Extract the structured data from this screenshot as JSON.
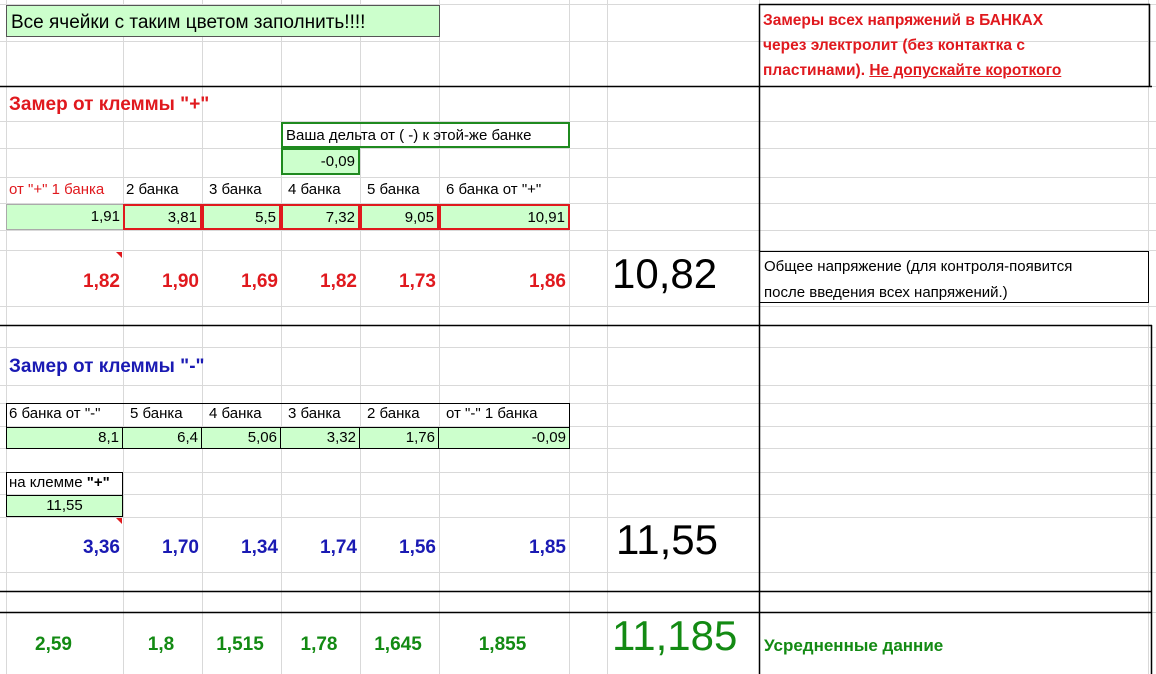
{
  "banner": "Все ячейки с таким цветом заполнить!!!!",
  "note": {
    "line1": "Замеры всех напряжений в БАНКАХ",
    "line2": "через электролит (без контактка с",
    "line3_a": "пластинами).",
    "line3_b": "Не допускайте короткого"
  },
  "plus": {
    "title": "Замер от клеммы \"+\"",
    "delta_label": "Ваша дельта от ( -) к этой-же банке",
    "delta_value": "-0,09",
    "headers": [
      "от \"+\" 1 банка",
      "2 банка",
      "3 банка",
      "4 банка",
      "5 банка",
      "6 банка от \"+\""
    ],
    "inputs": [
      "1,91",
      "3,81",
      "5,5",
      "7,32",
      "9,05",
      "10,91"
    ],
    "banks": [
      "1,82",
      "1,90",
      "1,69",
      "1,82",
      "1,73",
      "1,86"
    ],
    "total": "10,82",
    "total_note_line1": "Общее напряжение (для контроля-появится",
    "total_note_line2": "после введения всех напряжений.)"
  },
  "minus": {
    "title": "Замер от клеммы \"-\"",
    "headers": [
      "6 банка от \"-\"",
      "5 банка",
      "4 банка",
      "3 банка",
      "2 банка",
      "от \"-\" 1 банка"
    ],
    "inputs": [
      "8,1",
      "6,4",
      "5,06",
      "3,32",
      "1,76",
      "-0,09"
    ],
    "terminal_label_a": "на клемме ",
    "terminal_label_b": "\"+\"",
    "terminal_value": "11,55",
    "banks": [
      "3,36",
      "1,70",
      "1,34",
      "1,74",
      "1,56",
      "1,85"
    ],
    "total": "11,55"
  },
  "average": {
    "banks": [
      "2,59",
      "1,8",
      "1,515",
      "1,78",
      "1,645",
      "1,855"
    ],
    "total": "11,185",
    "label": "Усредненные данние"
  },
  "colors": {
    "input_fill": "#ccffcc",
    "plus_red": "#e0191e",
    "minus_blue": "#1a1ab3",
    "avg_green": "#138a13",
    "gridline": "#d9d9d9"
  }
}
